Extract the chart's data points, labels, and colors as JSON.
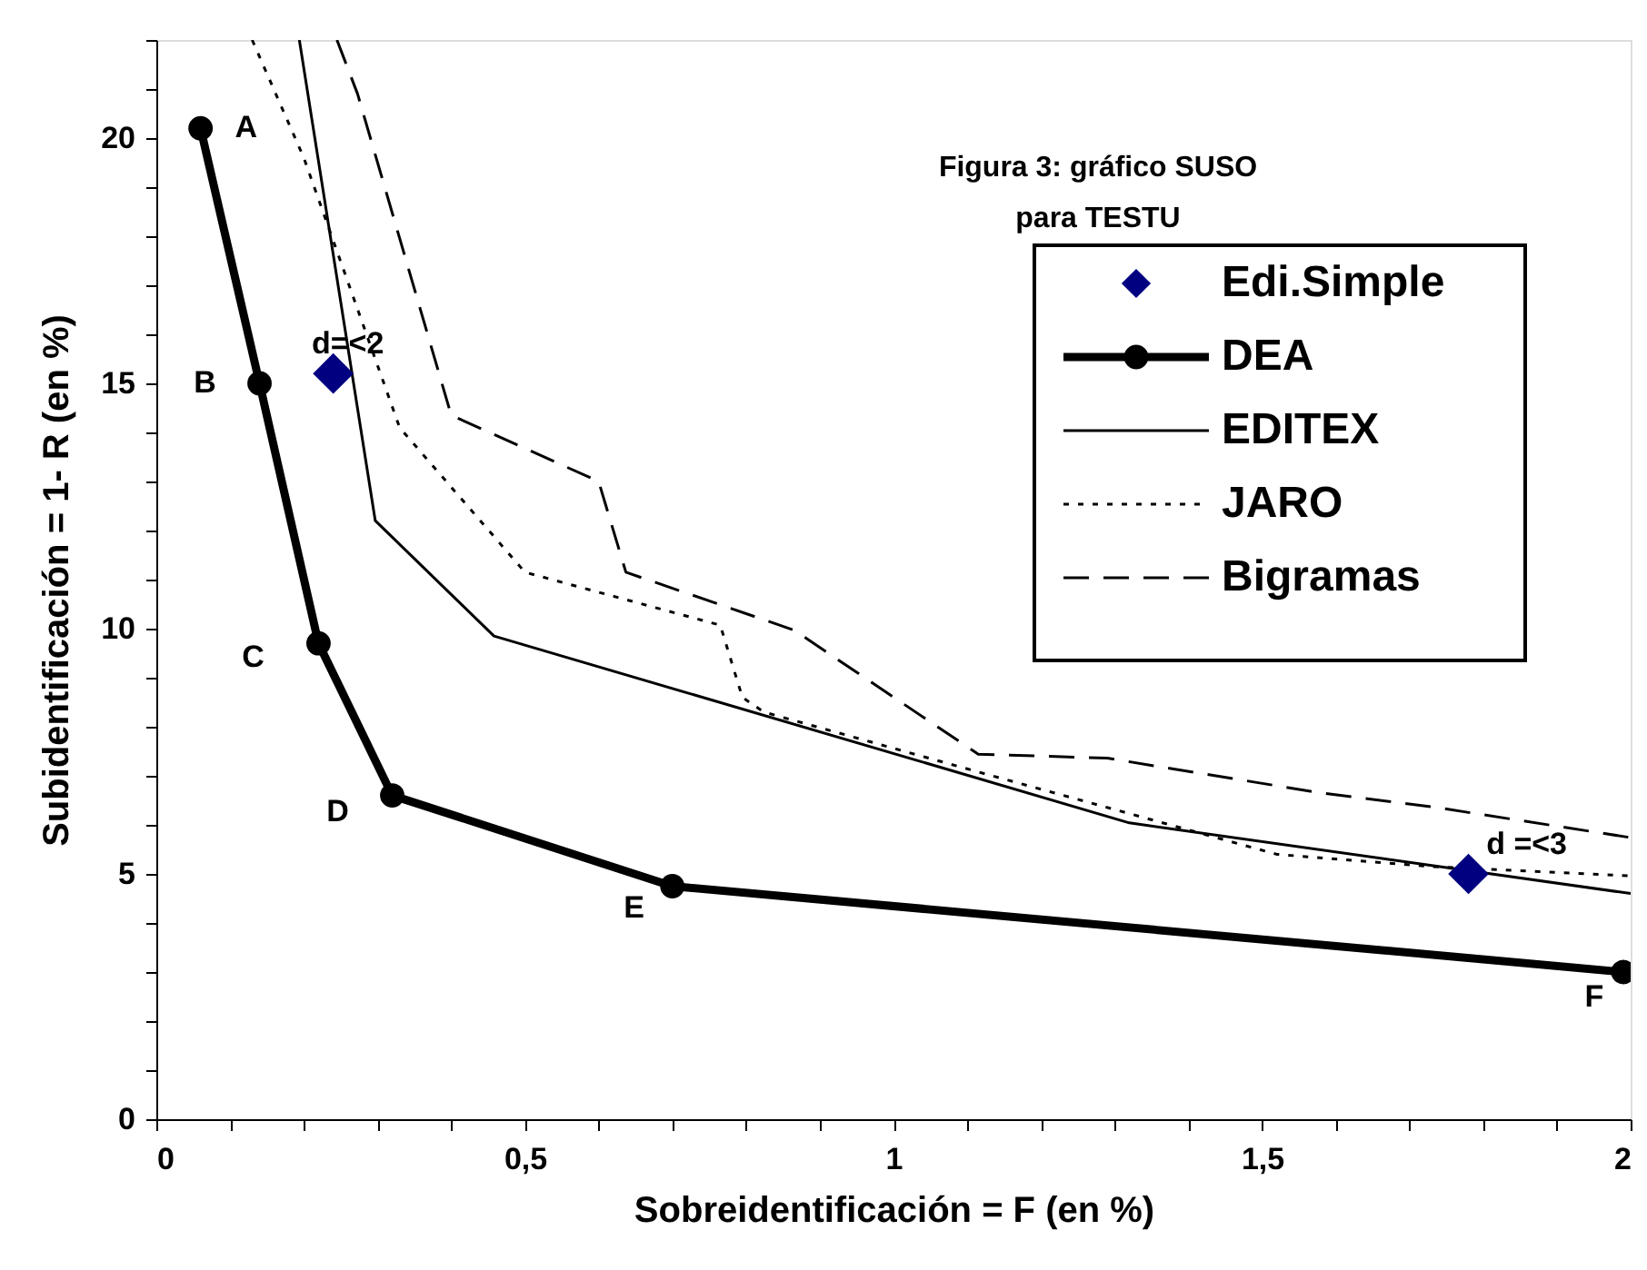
{
  "chart_data": {
    "type": "line",
    "title": "Figura 3: gráfico SUSO\npara TESTU",
    "xlabel": "Sobreidentificación = F  (en %)",
    "ylabel": "Subidentificación  = 1- R   (en %)",
    "xlim": [
      0,
      2
    ],
    "ylim": [
      0,
      22
    ],
    "xticks": [
      0,
      {
        "value": 0.1,
        "label": null
      },
      {
        "value": 0.2,
        "label": null
      },
      {
        "value": 0.3,
        "label": null
      },
      {
        "value": 0.4,
        "label": null
      },
      {
        "value": 0.5,
        "label": "0,5"
      },
      {
        "value": 0.6,
        "label": null
      },
      {
        "value": 0.7,
        "label": null
      },
      {
        "value": 0.8,
        "label": null
      },
      {
        "value": 0.9,
        "label": null
      },
      1,
      {
        "value": 1.1,
        "label": null
      },
      {
        "value": 1.2,
        "label": null
      },
      {
        "value": 1.3,
        "label": null
      },
      {
        "value": 1.4,
        "label": null
      },
      {
        "value": 1.5,
        "label": "1,5"
      },
      {
        "value": 1.6,
        "label": null
      },
      {
        "value": 1.7,
        "label": null
      },
      {
        "value": 1.8,
        "label": null
      },
      {
        "value": 1.9,
        "label": null
      },
      2
    ],
    "yticks": [
      0,
      {
        "value": 1,
        "label": null
      },
      {
        "value": 2,
        "label": null
      },
      {
        "value": 3,
        "label": null
      },
      {
        "value": 4,
        "label": null
      },
      5,
      {
        "value": 6,
        "label": null
      },
      {
        "value": 7,
        "label": null
      },
      {
        "value": 8,
        "label": null
      },
      {
        "value": 9,
        "label": null
      },
      10,
      {
        "value": 11,
        "label": null
      },
      {
        "value": 12,
        "label": null
      },
      {
        "value": 13,
        "label": null
      },
      {
        "value": 14,
        "label": null
      },
      15,
      {
        "value": 16,
        "label": null
      },
      {
        "value": 17,
        "label": null
      },
      {
        "value": 18,
        "label": null
      },
      {
        "value": 19,
        "label": null
      },
      20,
      {
        "value": 21,
        "label": null
      },
      {
        "value": 22,
        "label": null
      }
    ],
    "grid": false,
    "legend": "top right",
    "series": [
      {
        "name": "Edi.Simple",
        "type": "scatter",
        "marker": "diamond",
        "color": "#000080",
        "x": [
          0.24,
          1.78
        ],
        "values": [
          15.2,
          5.0
        ]
      },
      {
        "name": "DEA",
        "type": "line",
        "marker": "circle",
        "line_style": "solid",
        "color": "#000000",
        "x": [
          0.06,
          0.14,
          0.22,
          0.32,
          0.7,
          1.99
        ],
        "values": [
          20.2,
          15.0,
          9.7,
          6.6,
          4.75,
          3.0
        ]
      },
      {
        "name": "EDITEX",
        "type": "line",
        "marker": "none",
        "line_style": "solid",
        "color": "#000000",
        "x": [
          0.194,
          0.297,
          0.458,
          1.32,
          2.0
        ],
        "values": [
          22,
          12.2,
          9.85,
          6.04,
          4.6
        ]
      },
      {
        "name": "JARO",
        "type": "line",
        "marker": "none",
        "line_style": "dotted",
        "color": "#000000",
        "x": [
          0.13,
          0.2,
          0.33,
          0.5,
          0.765,
          0.795,
          0.824,
          1.11,
          1.52,
          1.73,
          2.0
        ],
        "values": [
          22,
          19.6,
          14.1,
          11.15,
          10.07,
          8.6,
          8.3,
          7.1,
          5.4,
          5.15,
          4.96
        ]
      },
      {
        "name": "Bigramas",
        "type": "line",
        "marker": "none",
        "line_style": "dashed",
        "color": "#000000",
        "x": [
          0.245,
          0.273,
          0.4,
          0.6,
          0.637,
          0.865,
          1.115,
          1.29,
          1.58,
          1.73,
          2.0
        ],
        "values": [
          22,
          20.9,
          14.35,
          13.0,
          11.15,
          9.97,
          7.44,
          7.36,
          6.65,
          6.37,
          5.74
        ]
      }
    ],
    "annotations": [
      {
        "text": "A",
        "x": 0.06,
        "y": 20.2
      },
      {
        "text": "B",
        "x": 0.14,
        "y": 15.0
      },
      {
        "text": "C",
        "x": 0.22,
        "y": 9.7
      },
      {
        "text": "D",
        "x": 0.32,
        "y": 6.6
      },
      {
        "text": "E",
        "x": 0.7,
        "y": 4.75
      },
      {
        "text": "F",
        "x": 1.99,
        "y": 3.0
      },
      {
        "text": "d=<2",
        "x": 0.24,
        "y": 15.2
      },
      {
        "text": "d =<3",
        "x": 1.78,
        "y": 5.0
      }
    ]
  }
}
